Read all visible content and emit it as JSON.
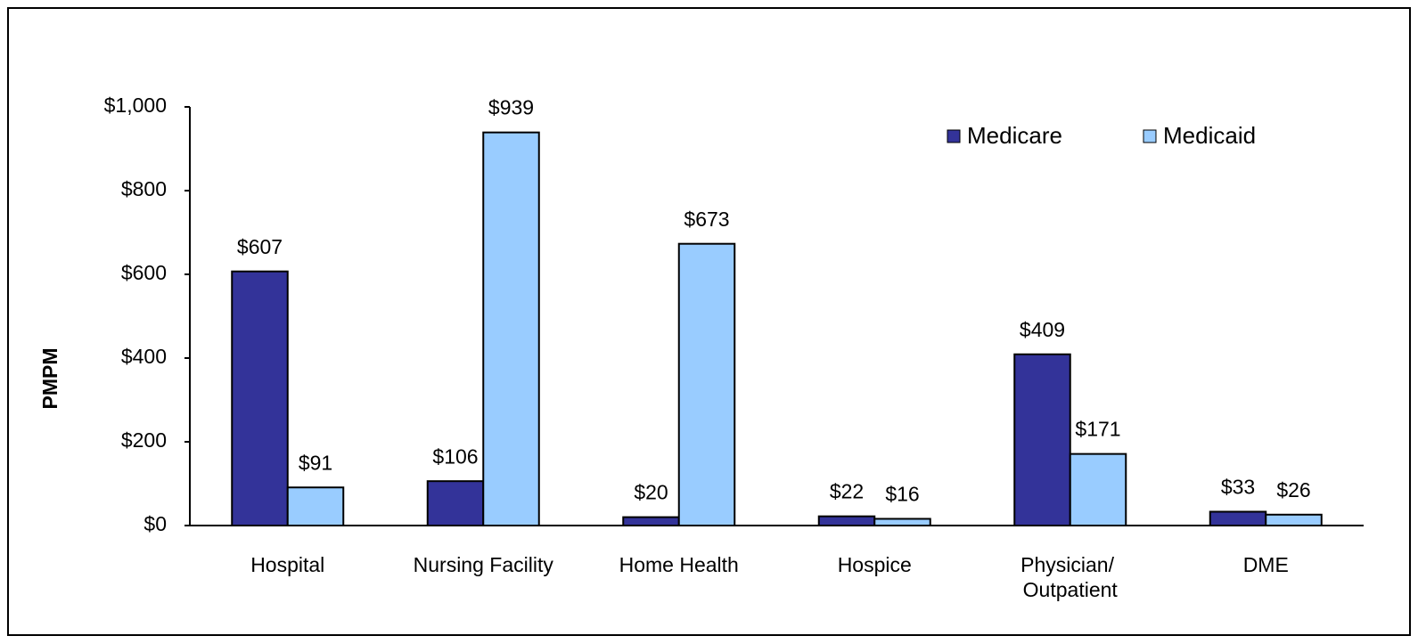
{
  "chart_data": {
    "type": "bar",
    "y_label": "PMPM",
    "categories": [
      "Hospital",
      "Nursing Facility",
      "Home Health",
      "Hospice",
      "Physician/ Outpatient",
      "DME"
    ],
    "series": [
      {
        "name": "Medicare",
        "color": "#333399",
        "values": [
          607,
          106,
          20,
          22,
          409,
          33
        ],
        "value_labels": [
          "$607",
          "$106",
          "$20",
          "$22",
          "$409",
          "$33"
        ]
      },
      {
        "name": "Medicaid",
        "color": "#99ccff",
        "values": [
          91,
          939,
          673,
          16,
          171,
          26
        ],
        "value_labels": [
          "$91",
          "$939",
          "$673",
          "$16",
          "$171",
          "$26"
        ]
      }
    ],
    "ylim": [
      0,
      1000
    ],
    "yticks": [
      {
        "value": 0,
        "label": "$0"
      },
      {
        "value": 200,
        "label": "$200"
      },
      {
        "value": 400,
        "label": "$400"
      },
      {
        "value": 600,
        "label": "$600"
      },
      {
        "value": 800,
        "label": "$800"
      },
      {
        "value": 1000,
        "label": "$1,000"
      }
    ],
    "grid": false,
    "legend": "top-right"
  }
}
